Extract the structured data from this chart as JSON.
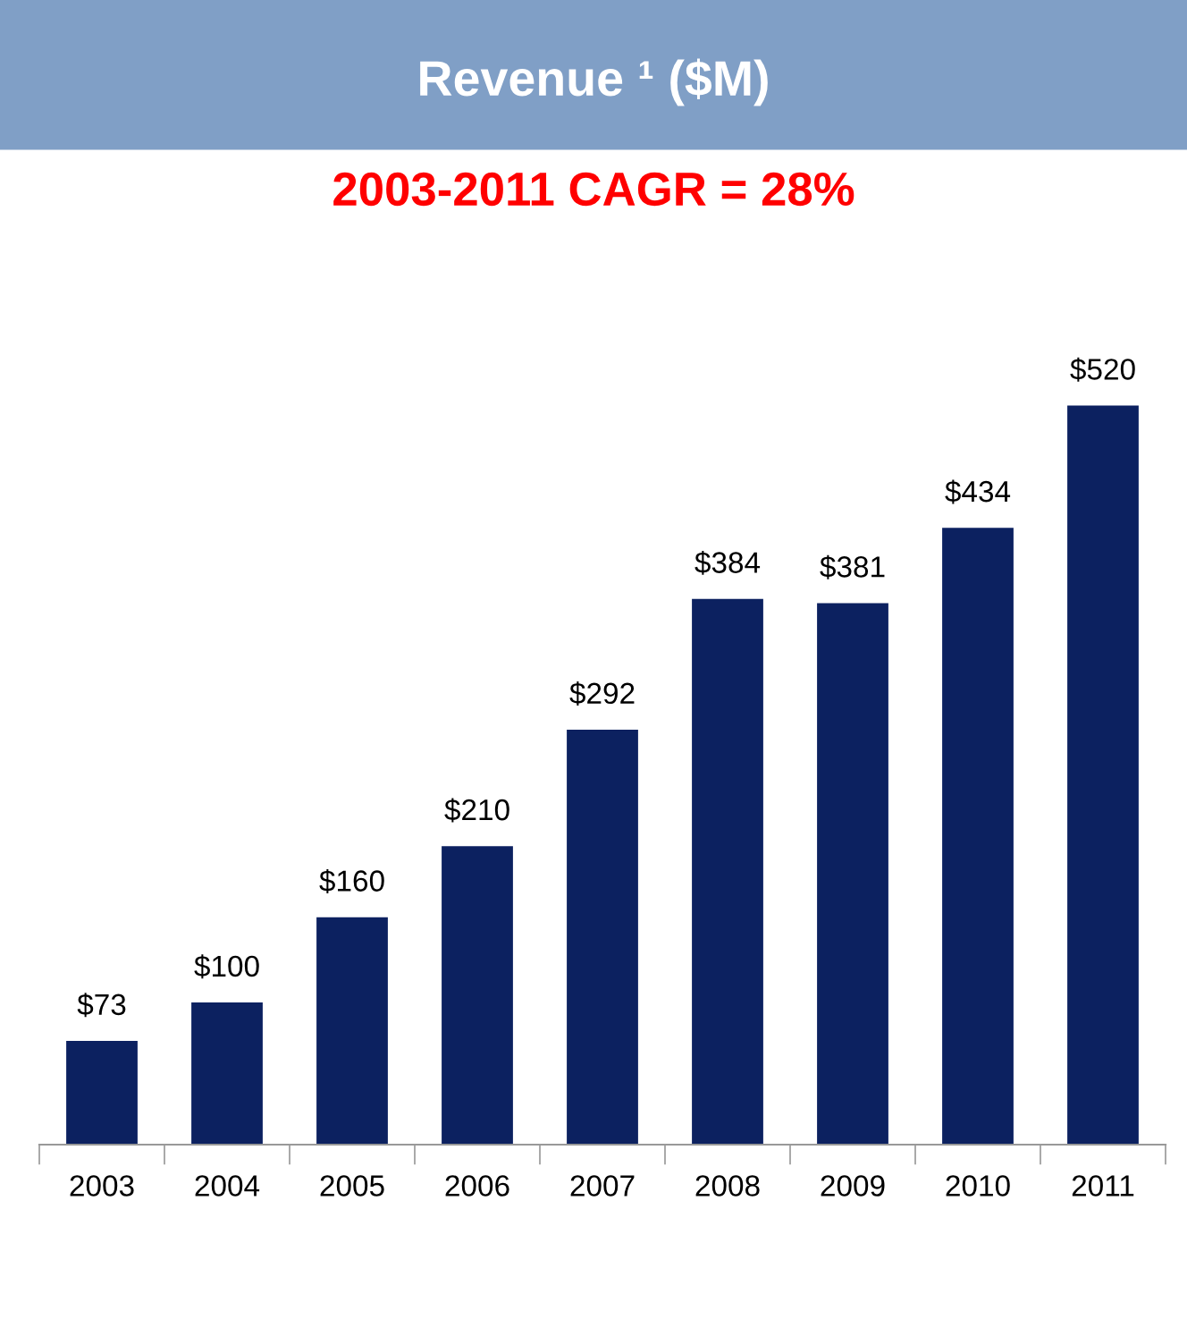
{
  "chart_data": {
    "type": "bar",
    "title": "Revenue ¹ ($M)",
    "subtitle": "2003-2011 CAGR = 28%",
    "categories": [
      "2003",
      "2004",
      "2005",
      "2006",
      "2007",
      "2008",
      "2009",
      "2010",
      "2011"
    ],
    "values": [
      73,
      100,
      160,
      210,
      292,
      384,
      381,
      434,
      520
    ],
    "value_labels": [
      "$73",
      "$100",
      "$160",
      "$210",
      "$292",
      "$384",
      "$381",
      "$434",
      "$520"
    ],
    "color": "#0c2160",
    "tick_labels": "x",
    "grid": false,
    "legend": false
  }
}
